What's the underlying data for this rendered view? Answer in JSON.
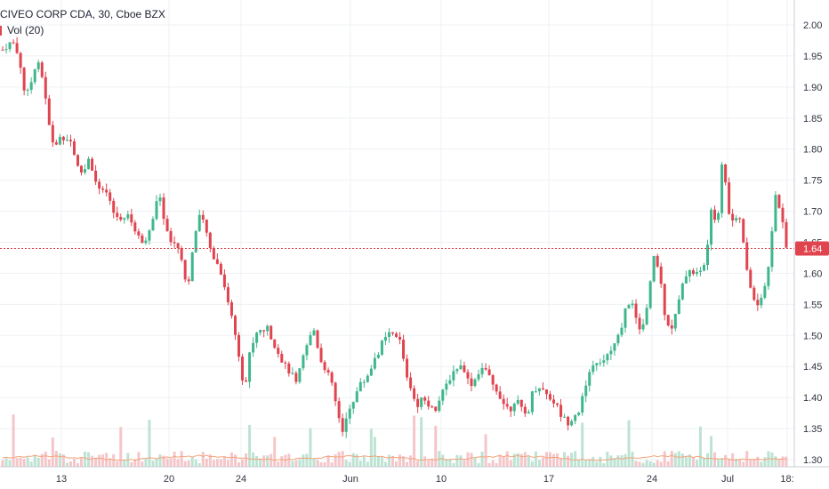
{
  "legend": {
    "symbol_line": "CIVEO CORP CDA, 30, Cboe BZX",
    "volume_line": "Vol (20)"
  },
  "colors": {
    "up": "#3fb68b",
    "down": "#e0444f",
    "grid": "#eef0f4",
    "volume_up": "#bde3d3",
    "volume_down": "#f5c6c9",
    "volume_ma": "#f3a37a",
    "price_line": "#e0444f"
  },
  "chart_data": {
    "type": "candlestick",
    "title": "CIVEO CORP CDA, 30, Cboe BZX",
    "indicator": "Vol (20)",
    "ylim": [
      1.295,
      2.025
    ],
    "y_ticks": [
      "2.00",
      "1.95",
      "1.90",
      "1.85",
      "1.80",
      "1.75",
      "1.70",
      "1.65",
      "1.60",
      "1.55",
      "1.50",
      "1.45",
      "1.40",
      "1.35",
      "1.30"
    ],
    "x_labels": [
      "13",
      "20",
      "24",
      "Jun",
      "10",
      "17",
      "24",
      "Jul",
      "18:"
    ],
    "last_price": "1.64",
    "grid": true,
    "legend_position": "top-left",
    "price_path": [
      [
        0,
        1.96
      ],
      [
        2,
        1.97
      ],
      [
        4,
        1.97
      ],
      [
        6,
        1.94
      ],
      [
        8,
        1.88
      ],
      [
        10,
        1.91
      ],
      [
        12,
        1.95
      ],
      [
        14,
        1.91
      ],
      [
        16,
        1.84
      ],
      [
        18,
        1.8
      ],
      [
        20,
        1.82
      ],
      [
        22,
        1.82
      ],
      [
        24,
        1.81
      ],
      [
        26,
        1.77
      ],
      [
        28,
        1.76
      ],
      [
        30,
        1.79
      ],
      [
        32,
        1.75
      ],
      [
        34,
        1.73
      ],
      [
        36,
        1.73
      ],
      [
        38,
        1.7
      ],
      [
        40,
        1.69
      ],
      [
        42,
        1.69
      ],
      [
        44,
        1.69
      ],
      [
        46,
        1.67
      ],
      [
        48,
        1.65
      ],
      [
        50,
        1.66
      ],
      [
        52,
        1.68
      ],
      [
        54,
        1.73
      ],
      [
        56,
        1.69
      ],
      [
        58,
        1.65
      ],
      [
        60,
        1.65
      ],
      [
        62,
        1.63
      ],
      [
        64,
        1.57
      ],
      [
        66,
        1.64
      ],
      [
        68,
        1.69
      ],
      [
        70,
        1.68
      ],
      [
        72,
        1.64
      ],
      [
        74,
        1.62
      ],
      [
        76,
        1.6
      ],
      [
        78,
        1.56
      ],
      [
        80,
        1.52
      ],
      [
        82,
        1.47
      ],
      [
        84,
        1.41
      ],
      [
        86,
        1.48
      ],
      [
        88,
        1.5
      ],
      [
        90,
        1.51
      ],
      [
        92,
        1.51
      ],
      [
        94,
        1.49
      ],
      [
        96,
        1.47
      ],
      [
        98,
        1.45
      ],
      [
        100,
        1.44
      ],
      [
        102,
        1.42
      ],
      [
        104,
        1.46
      ],
      [
        106,
        1.49
      ],
      [
        108,
        1.51
      ],
      [
        110,
        1.47
      ],
      [
        112,
        1.44
      ],
      [
        114,
        1.43
      ],
      [
        116,
        1.38
      ],
      [
        118,
        1.34
      ],
      [
        120,
        1.38
      ],
      [
        122,
        1.4
      ],
      [
        124,
        1.42
      ],
      [
        126,
        1.43
      ],
      [
        128,
        1.45
      ],
      [
        130,
        1.47
      ],
      [
        132,
        1.49
      ],
      [
        134,
        1.5
      ],
      [
        136,
        1.5
      ],
      [
        138,
        1.49
      ],
      [
        140,
        1.44
      ],
      [
        142,
        1.41
      ],
      [
        144,
        1.39
      ],
      [
        146,
        1.4
      ],
      [
        148,
        1.39
      ],
      [
        150,
        1.38
      ],
      [
        152,
        1.4
      ],
      [
        154,
        1.42
      ],
      [
        156,
        1.44
      ],
      [
        158,
        1.45
      ],
      [
        160,
        1.45
      ],
      [
        162,
        1.42
      ],
      [
        164,
        1.43
      ],
      [
        166,
        1.45
      ],
      [
        168,
        1.44
      ],
      [
        170,
        1.42
      ],
      [
        172,
        1.41
      ],
      [
        174,
        1.39
      ],
      [
        176,
        1.38
      ],
      [
        178,
        1.4
      ],
      [
        180,
        1.38
      ],
      [
        182,
        1.37
      ],
      [
        184,
        1.41
      ],
      [
        186,
        1.42
      ],
      [
        188,
        1.41
      ],
      [
        190,
        1.4
      ],
      [
        192,
        1.39
      ],
      [
        194,
        1.37
      ],
      [
        196,
        1.36
      ],
      [
        198,
        1.37
      ],
      [
        200,
        1.38
      ],
      [
        202,
        1.41
      ],
      [
        204,
        1.44
      ],
      [
        206,
        1.46
      ],
      [
        208,
        1.45
      ],
      [
        210,
        1.47
      ],
      [
        212,
        1.48
      ],
      [
        214,
        1.5
      ],
      [
        216,
        1.54
      ],
      [
        218,
        1.56
      ],
      [
        220,
        1.52
      ],
      [
        222,
        1.51
      ],
      [
        224,
        1.55
      ],
      [
        226,
        1.63
      ],
      [
        228,
        1.6
      ],
      [
        230,
        1.53
      ],
      [
        232,
        1.51
      ],
      [
        234,
        1.54
      ],
      [
        236,
        1.58
      ],
      [
        238,
        1.61
      ],
      [
        240,
        1.6
      ],
      [
        242,
        1.6
      ],
      [
        244,
        1.62
      ],
      [
        246,
        1.7
      ],
      [
        248,
        1.68
      ],
      [
        250,
        1.79
      ],
      [
        252,
        1.7
      ],
      [
        254,
        1.68
      ],
      [
        256,
        1.69
      ],
      [
        258,
        1.61
      ],
      [
        260,
        1.57
      ],
      [
        262,
        1.55
      ],
      [
        264,
        1.57
      ],
      [
        266,
        1.61
      ],
      [
        268,
        1.73
      ],
      [
        270,
        1.7
      ],
      [
        272,
        1.64
      ]
    ],
    "volume_ma_level": 0.18
  }
}
